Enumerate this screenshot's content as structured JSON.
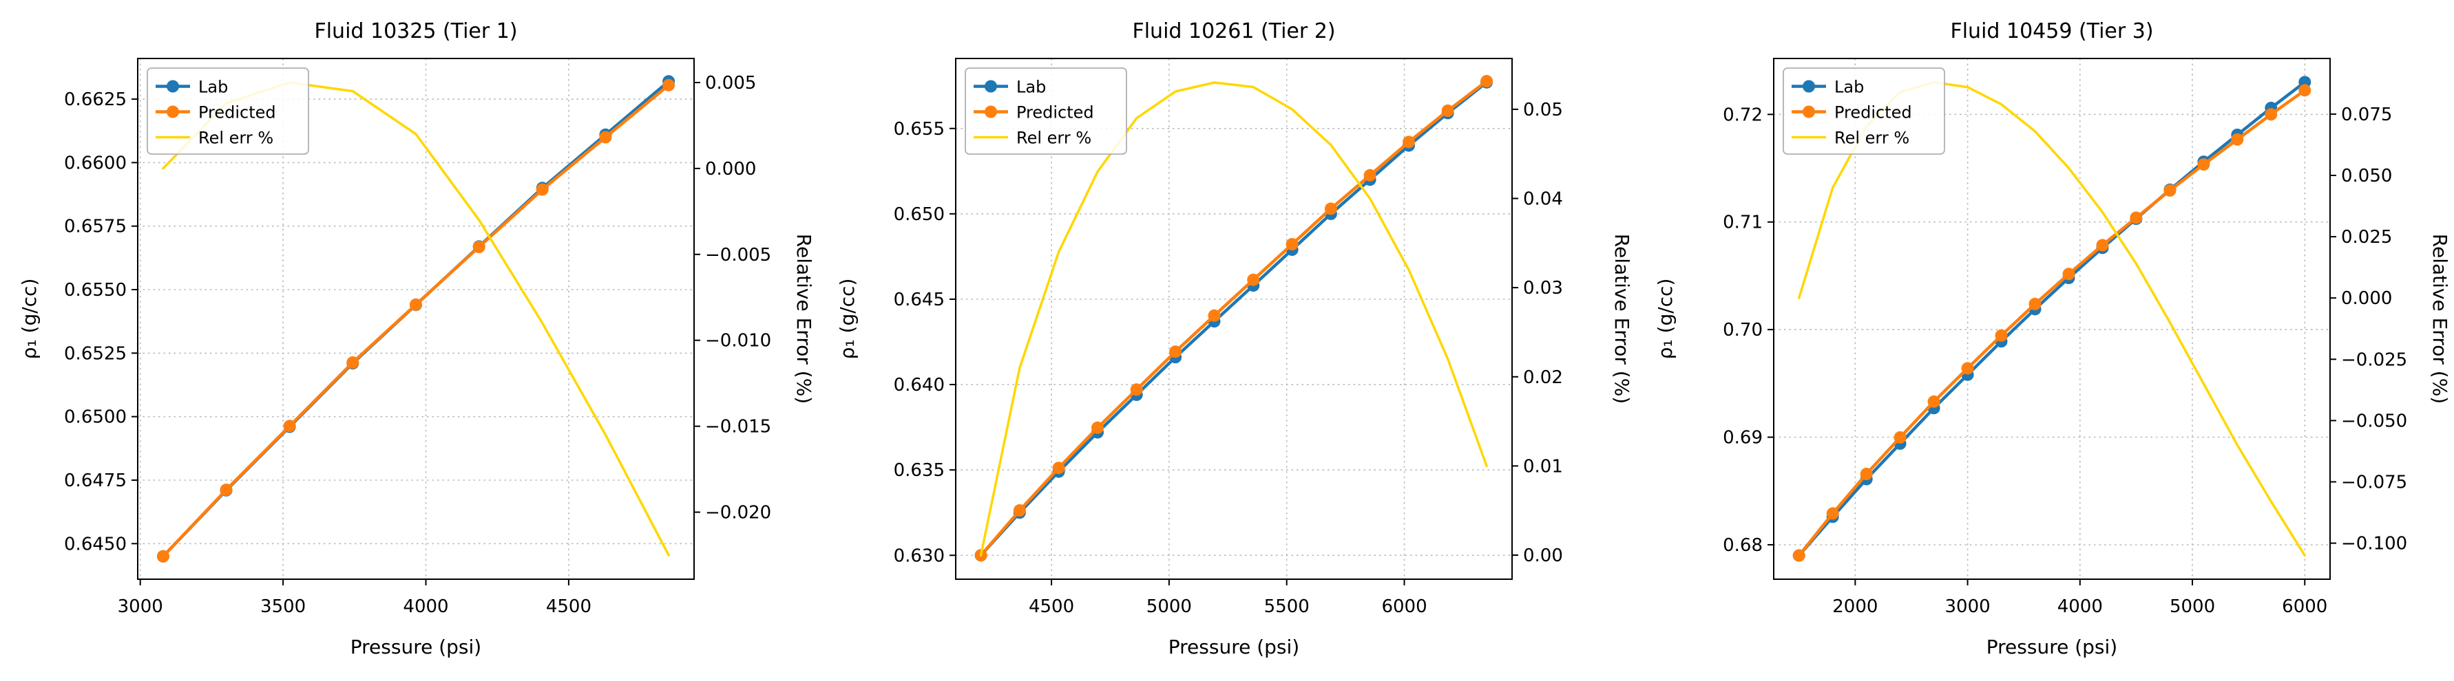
{
  "figure": {
    "background": "#ffffff"
  },
  "chart_data": [
    {
      "type": "line",
      "title": "Fluid 10325 (Tier 1)",
      "xlabel": "Pressure (psi)",
      "ylabel_left": "ρ₁ (g/cc)",
      "ylabel_right": "Relative Error (%)",
      "grid": true,
      "legend_position": "upper-left",
      "xlim": [
        2991,
        4939
      ],
      "ylim_left": [
        0.6436,
        0.6641
      ],
      "ylim_right": [
        -0.0239,
        0.0064
      ],
      "xticks": {
        "values": [
          3000,
          3500,
          4000,
          4500
        ],
        "labels": [
          "3000",
          "3500",
          "4000",
          "4500"
        ]
      },
      "yticks_left": {
        "values": [
          0.645,
          0.6475,
          0.65,
          0.6525,
          0.655,
          0.6575,
          0.66,
          0.6625
        ],
        "labels": [
          "0.6450",
          "0.6475",
          "0.6500",
          "0.6525",
          "0.6550",
          "0.6575",
          "0.6600",
          "0.6625"
        ]
      },
      "yticks_right": {
        "values": [
          0.005,
          0.0,
          -0.005,
          -0.01,
          -0.015,
          -0.02
        ],
        "labels": [
          "0.005",
          "0.000",
          "−0.005",
          "−0.010",
          "−0.015",
          "−0.020"
        ]
      },
      "x": [
        3080,
        3301,
        3523,
        3744,
        3965,
        4186,
        4408,
        4629,
        4850
      ],
      "series": [
        {
          "name": "Lab",
          "axis": "left",
          "color": "#1f77b4",
          "marker": "circle",
          "values": [
            0.6445,
            0.6471,
            0.6496,
            0.6521,
            0.6544,
            0.6567,
            0.659,
            0.6611,
            0.6632
          ]
        },
        {
          "name": "Predicted",
          "axis": "left",
          "color": "#ff7f0e",
          "marker": "circle",
          "values": [
            0.6445,
            0.64712,
            0.64963,
            0.65213,
            0.65441,
            0.65668,
            0.65894,
            0.661,
            0.66305
          ]
        },
        {
          "name": "Rel err %",
          "axis": "right",
          "color": "#ffd700",
          "marker": "none",
          "values": [
            0.0,
            0.0038,
            0.005,
            0.0045,
            0.002,
            -0.003,
            -0.009,
            -0.0155,
            -0.0225
          ]
        }
      ]
    },
    {
      "type": "line",
      "title": "Fluid 10261 (Tier 2)",
      "xlabel": "Pressure (psi)",
      "ylabel_left": "ρ₁ (g/cc)",
      "ylabel_right": "Relative Error (%)",
      "grid": true,
      "legend_position": "upper-left",
      "xlim": [
        4093,
        6458
      ],
      "ylim_left": [
        0.6286,
        0.6591
      ],
      "ylim_right": [
        -0.0027,
        0.0557
      ],
      "xticks": {
        "values": [
          4500,
          5000,
          5500,
          6000
        ],
        "labels": [
          "4500",
          "5000",
          "5500",
          "6000"
        ]
      },
      "yticks_left": {
        "values": [
          0.63,
          0.635,
          0.64,
          0.645,
          0.65,
          0.655
        ],
        "labels": [
          "0.630",
          "0.635",
          "0.640",
          "0.645",
          "0.650",
          "0.655"
        ]
      },
      "yticks_right": {
        "values": [
          0.0,
          0.01,
          0.02,
          0.03,
          0.04,
          0.05
        ],
        "labels": [
          "0.00",
          "0.01",
          "0.02",
          "0.03",
          "0.04",
          "0.05"
        ]
      },
      "x": [
        4200,
        4365,
        4531,
        4696,
        4862,
        5027,
        5192,
        5358,
        5523,
        5688,
        5854,
        6019,
        6185,
        6350
      ],
      "series": [
        {
          "name": "Lab",
          "axis": "left",
          "color": "#1f77b4",
          "marker": "circle",
          "values": [
            0.63,
            0.6325,
            0.6349,
            0.6372,
            0.6394,
            0.6416,
            0.6437,
            0.6458,
            0.6479,
            0.65,
            0.652,
            0.654,
            0.6559,
            0.6577
          ]
        },
        {
          "name": "Predicted",
          "axis": "left",
          "color": "#ff7f0e",
          "marker": "circle",
          "values": [
            0.63,
            0.63263,
            0.63512,
            0.63747,
            0.63971,
            0.64193,
            0.64404,
            0.64614,
            0.64822,
            0.6503,
            0.65226,
            0.65421,
            0.65604,
            0.65777
          ]
        },
        {
          "name": "Rel err %",
          "axis": "right",
          "color": "#ffd700",
          "marker": "none",
          "values": [
            0.0,
            0.021,
            0.034,
            0.043,
            0.049,
            0.052,
            0.053,
            0.0525,
            0.05,
            0.046,
            0.04,
            0.032,
            0.022,
            0.01
          ]
        }
      ]
    },
    {
      "type": "line",
      "title": "Fluid 10459 (Tier 3)",
      "xlabel": "Pressure (psi)",
      "ylabel_left": "ρ₁ (g/cc)",
      "ylabel_right": "Relative Error (%)",
      "grid": true,
      "legend_position": "upper-left",
      "xlim": [
        1275,
        6225
      ],
      "ylim_left": [
        0.6768,
        0.7252
      ],
      "ylim_right": [
        -0.1147,
        0.0977
      ],
      "xticks": {
        "values": [
          2000,
          3000,
          4000,
          5000,
          6000
        ],
        "labels": [
          "2000",
          "3000",
          "4000",
          "5000",
          "6000"
        ]
      },
      "yticks_left": {
        "values": [
          0.68,
          0.69,
          0.7,
          0.71,
          0.72
        ],
        "labels": [
          "0.68",
          "0.69",
          "0.70",
          "0.71",
          "0.72"
        ]
      },
      "yticks_right": {
        "values": [
          -0.1,
          -0.075,
          -0.05,
          -0.025,
          0.0,
          0.025,
          0.05,
          0.075
        ],
        "labels": [
          "−0.100",
          "−0.075",
          "−0.050",
          "−0.025",
          "0.000",
          "0.025",
          "0.050",
          "0.075"
        ]
      },
      "x": [
        1500,
        1800,
        2100,
        2400,
        2700,
        3000,
        3300,
        3600,
        3900,
        4200,
        4500,
        4800,
        5100,
        5400,
        5700,
        6000
      ],
      "series": [
        {
          "name": "Lab",
          "axis": "left",
          "color": "#1f77b4",
          "marker": "circle",
          "values": [
            0.679,
            0.6826,
            0.6861,
            0.6894,
            0.6927,
            0.6958,
            0.6989,
            0.7019,
            0.7048,
            0.7076,
            0.7103,
            0.713,
            0.7156,
            0.7181,
            0.7206,
            0.723
          ]
        },
        {
          "name": "Predicted",
          "axis": "left",
          "color": "#ff7f0e",
          "marker": "circle",
          "values": [
            0.679,
            0.68291,
            0.68658,
            0.68998,
            0.69331,
            0.6964,
            0.69945,
            0.70238,
            0.70517,
            0.70785,
            0.7104,
            0.71293,
            0.71535,
            0.71767,
            0.72,
            0.72224
          ]
        },
        {
          "name": "Rel err %",
          "axis": "right",
          "color": "#ffd700",
          "marker": "none",
          "values": [
            0.0,
            0.045,
            0.07,
            0.084,
            0.088,
            0.086,
            0.079,
            0.068,
            0.053,
            0.035,
            0.014,
            -0.01,
            -0.035,
            -0.06,
            -0.083,
            -0.105
          ]
        }
      ]
    }
  ]
}
